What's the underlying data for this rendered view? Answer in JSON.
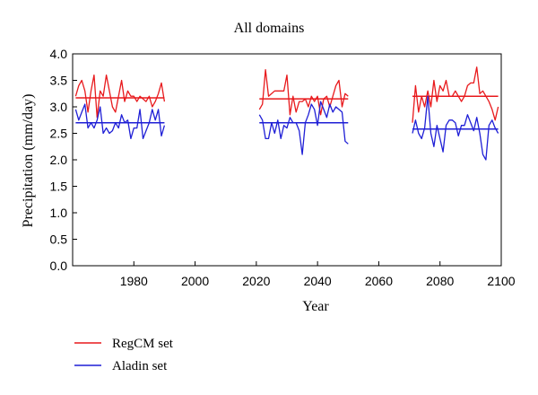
{
  "chart_data": {
    "type": "line",
    "title": "All domains",
    "xlabel": "Year",
    "ylabel": "Precipitation (mm/day)",
    "xlim": [
      1960,
      2100
    ],
    "ylim": [
      0,
      4.0
    ],
    "xticks": [
      1980,
      2000,
      2020,
      2040,
      2060,
      2080,
      2100
    ],
    "xtick_labels": [
      "1980",
      "2000",
      "2020",
      "2040",
      "2060",
      "2080",
      "2100"
    ],
    "yticks": [
      0,
      0.5,
      1.0,
      1.5,
      2.0,
      2.5,
      3.0,
      3.5,
      4.0
    ],
    "ytick_labels": [
      "0.0",
      "0.5",
      "1.0",
      "1.5",
      "2.0",
      "2.5",
      "3.0",
      "3.5",
      "4.0"
    ],
    "grid": false,
    "legend_position": "bottom-left",
    "series": [
      {
        "name": "RegCM set",
        "color": "#e8191c",
        "segments": [
          {
            "x": [
              1961,
              1962,
              1963,
              1964,
              1965,
              1966,
              1967,
              1968,
              1969,
              1970,
              1971,
              1972,
              1973,
              1974,
              1975,
              1976,
              1977,
              1978,
              1979,
              1980,
              1981,
              1982,
              1983,
              1984,
              1985,
              1986,
              1987,
              1988,
              1989,
              1990
            ],
            "y": [
              3.2,
              3.4,
              3.5,
              3.3,
              2.9,
              3.3,
              3.6,
              2.8,
              3.3,
              3.2,
              3.6,
              3.3,
              3.0,
              2.9,
              3.2,
              3.5,
              3.1,
              3.3,
              3.2,
              3.2,
              3.1,
              3.2,
              3.15,
              3.1,
              3.2,
              3.0,
              3.1,
              3.25,
              3.45,
              3.1
            ]
          },
          {
            "x": [
              2021,
              2022,
              2023,
              2024,
              2025,
              2026,
              2027,
              2028,
              2029,
              2030,
              2031,
              2032,
              2033,
              2034,
              2035,
              2036,
              2037,
              2038,
              2039,
              2040,
              2041,
              2042,
              2043,
              2044,
              2045,
              2046,
              2047,
              2048,
              2049,
              2050
            ],
            "y": [
              2.95,
              3.05,
              3.7,
              3.2,
              3.25,
              3.3,
              3.3,
              3.3,
              3.3,
              3.6,
              2.85,
              3.2,
              2.9,
              3.1,
              3.1,
              3.15,
              3.0,
              3.2,
              3.1,
              3.2,
              2.85,
              3.15,
              3.2,
              3.0,
              3.2,
              3.4,
              3.5,
              3.0,
              3.25,
              3.2
            ]
          },
          {
            "x": [
              2071,
              2072,
              2073,
              2074,
              2075,
              2076,
              2077,
              2078,
              2079,
              2080,
              2081,
              2082,
              2083,
              2084,
              2085,
              2086,
              2087,
              2088,
              2089,
              2090,
              2091,
              2092,
              2093,
              2094,
              2095,
              2096,
              2097,
              2098,
              2099
            ],
            "y": [
              2.7,
              3.4,
              2.9,
              3.2,
              3.0,
              3.3,
              3.0,
              3.5,
              3.1,
              3.4,
              3.3,
              3.5,
              3.2,
              3.2,
              3.3,
              3.2,
              3.1,
              3.2,
              3.4,
              3.45,
              3.45,
              3.75,
              3.25,
              3.3,
              3.2,
              3.1,
              2.95,
              2.75,
              3.0
            ]
          }
        ],
        "means": [
          {
            "x": [
              1961,
              1990
            ],
            "y": 3.17
          },
          {
            "x": [
              2021,
              2050
            ],
            "y": 3.15
          },
          {
            "x": [
              2071,
              2099
            ],
            "y": 3.2
          }
        ]
      },
      {
        "name": "Aladin set",
        "color": "#1f1fd6",
        "segments": [
          {
            "x": [
              1961,
              1962,
              1963,
              1964,
              1965,
              1966,
              1967,
              1968,
              1969,
              1970,
              1971,
              1972,
              1973,
              1974,
              1975,
              1976,
              1977,
              1978,
              1979,
              1980,
              1981,
              1982,
              1983,
              1984,
              1985,
              1986,
              1987,
              1988,
              1989,
              1990
            ],
            "y": [
              2.95,
              2.75,
              2.9,
              3.05,
              2.6,
              2.7,
              2.6,
              2.75,
              3.0,
              2.5,
              2.6,
              2.5,
              2.55,
              2.7,
              2.6,
              2.85,
              2.7,
              2.75,
              2.4,
              2.6,
              2.6,
              2.95,
              2.4,
              2.55,
              2.7,
              2.95,
              2.75,
              2.95,
              2.45,
              2.65
            ]
          },
          {
            "x": [
              2021,
              2022,
              2023,
              2024,
              2025,
              2026,
              2027,
              2028,
              2029,
              2030,
              2031,
              2032,
              2033,
              2034,
              2035,
              2036,
              2037,
              2038,
              2039,
              2040,
              2041,
              2042,
              2043,
              2044,
              2045,
              2046,
              2047,
              2048,
              2049,
              2050
            ],
            "y": [
              2.85,
              2.75,
              2.4,
              2.4,
              2.7,
              2.5,
              2.75,
              2.4,
              2.65,
              2.6,
              2.8,
              2.7,
              2.7,
              2.55,
              2.1,
              2.7,
              2.85,
              3.05,
              2.95,
              2.65,
              3.1,
              2.95,
              2.8,
              3.05,
              2.9,
              3.0,
              2.95,
              2.9,
              2.35,
              2.3
            ]
          },
          {
            "x": [
              2071,
              2072,
              2073,
              2074,
              2075,
              2076,
              2077,
              2078,
              2079,
              2080,
              2081,
              2082,
              2083,
              2084,
              2085,
              2086,
              2087,
              2088,
              2089,
              2090,
              2091,
              2092,
              2093,
              2094,
              2095,
              2096,
              2097,
              2098,
              2099
            ],
            "y": [
              2.5,
              2.75,
              2.5,
              2.4,
              2.6,
              3.2,
              2.5,
              2.25,
              2.65,
              2.4,
              2.15,
              2.65,
              2.75,
              2.75,
              2.7,
              2.45,
              2.65,
              2.65,
              2.85,
              2.7,
              2.55,
              2.8,
              2.5,
              2.1,
              2.0,
              2.65,
              2.75,
              2.6,
              2.5
            ]
          }
        ],
        "means": [
          {
            "x": [
              1961,
              1990
            ],
            "y": 2.7
          },
          {
            "x": [
              2021,
              2050
            ],
            "y": 2.7
          },
          {
            "x": [
              2071,
              2099
            ],
            "y": 2.58
          }
        ]
      }
    ]
  }
}
